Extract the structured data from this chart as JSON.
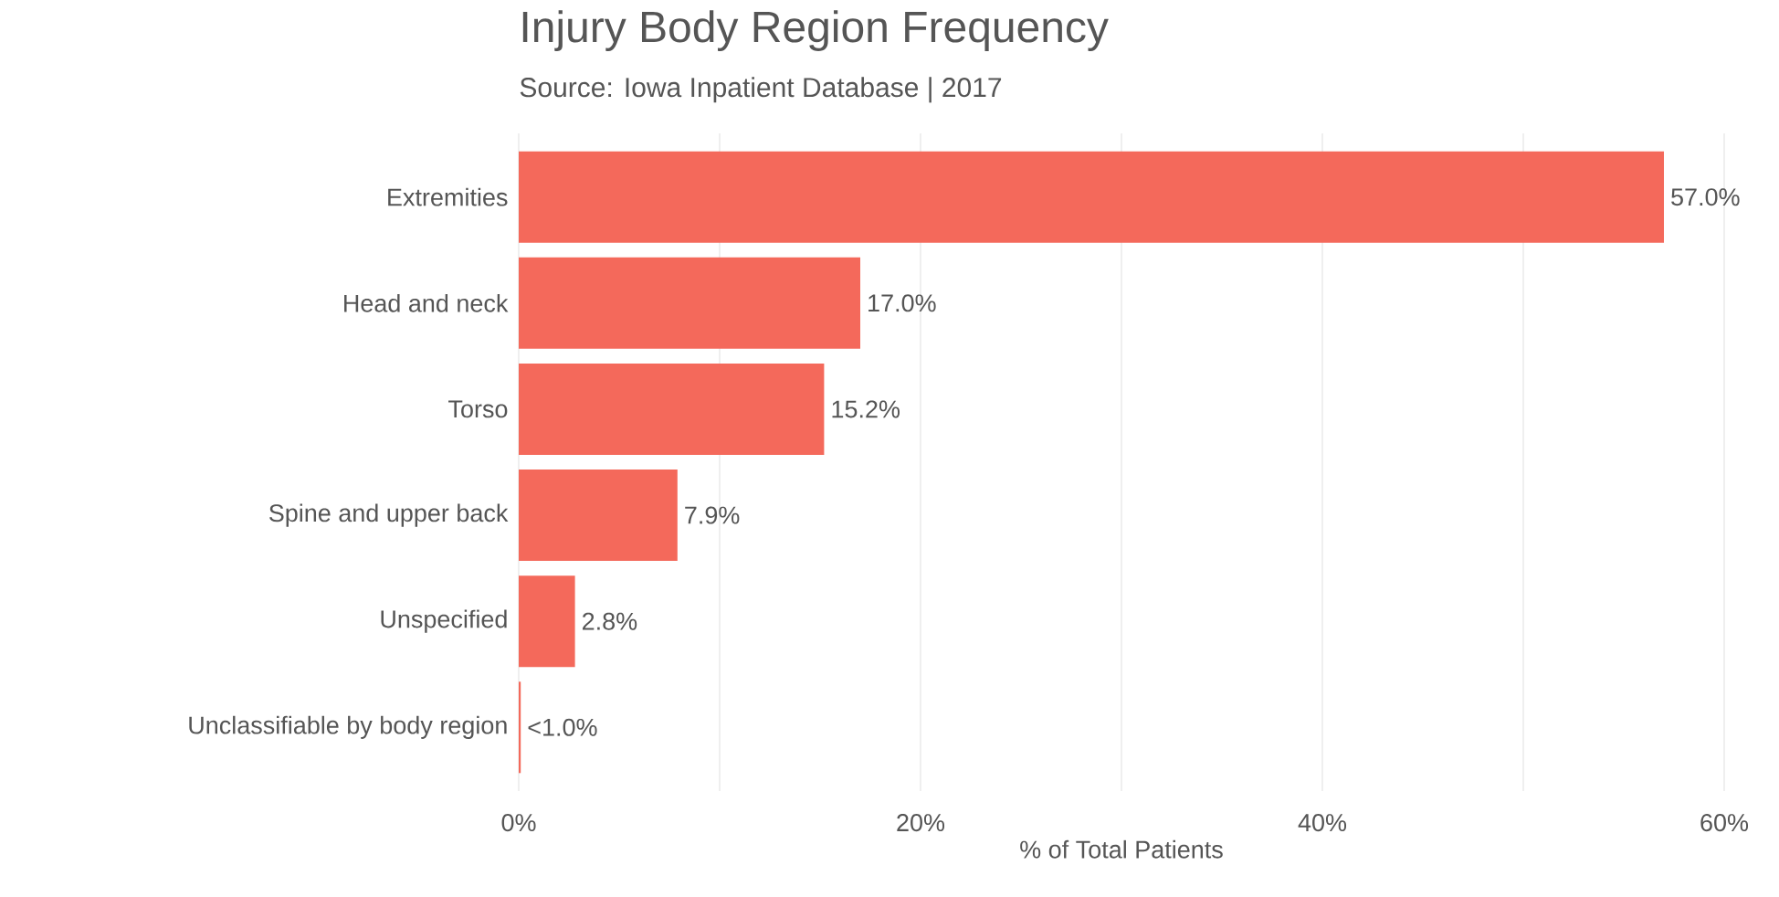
{
  "chart_data": {
    "type": "bar",
    "orientation": "horizontal",
    "title": "Injury Body Region Frequency",
    "subtitle": "Source: Iowa Inpatient Database | 2017",
    "xlabel": "% of Total Patients",
    "categories": [
      "Extremities",
      "Head and neck",
      "Torso",
      "Spine and upper back",
      "Unspecified",
      "Unclassifiable by body region"
    ],
    "values": [
      57.0,
      17.0,
      15.2,
      7.9,
      2.8,
      0.1
    ],
    "value_labels": [
      "57.0%",
      "17.0%",
      "15.2%",
      "7.9%",
      "2.8%",
      "<1.0%"
    ],
    "color": "#f4695b",
    "xlim": [
      0,
      60
    ],
    "xticks": [
      {
        "value": 0,
        "label": "0%"
      },
      {
        "value": 10,
        "label": null
      },
      {
        "value": 20,
        "label": "20%"
      },
      {
        "value": 30,
        "label": null
      },
      {
        "value": 40,
        "label": "40%"
      },
      {
        "value": 50,
        "label": null
      },
      {
        "value": 60,
        "label": "60%"
      }
    ],
    "grid": "x"
  }
}
